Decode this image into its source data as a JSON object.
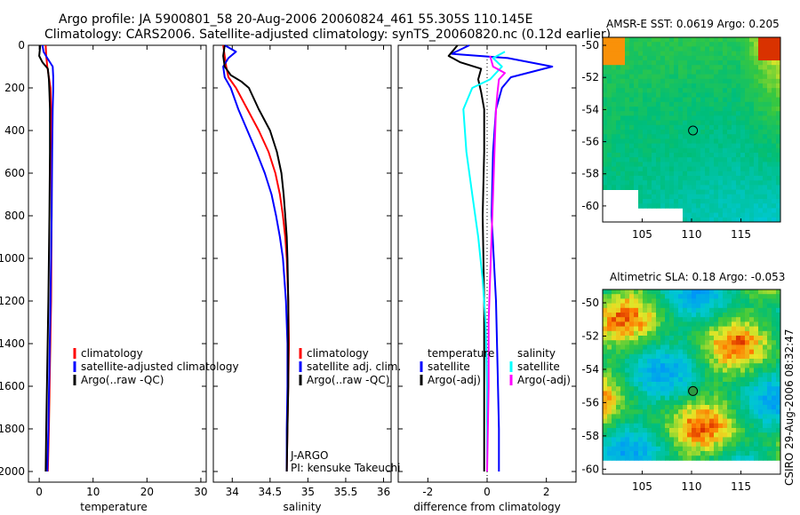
{
  "title": {
    "line1": "Argo profile: JA 5900801_58 20-Aug-2006 20060824_461 55.305S 110.145E",
    "line2": "Climatology: CARS2006. Satellite-adjusted climatology: synTS_20060820.nc (0.12d earlier)"
  },
  "credit": "CSIRO 29-Aug-2006 08:32:47",
  "colors": {
    "climatology": "#ff0000",
    "satellite": "#0000ff",
    "argo": "#000000",
    "salinity_satellite": "#00ffff",
    "salinity_argo": "#ff00ff"
  },
  "chart_data": [
    {
      "type": "line",
      "name": "temperature",
      "xlabel": "temperature",
      "ylabel": "",
      "xlim": [
        -2,
        31
      ],
      "ylim": [
        2050,
        0
      ],
      "xticks": [
        0,
        10,
        20,
        30
      ],
      "yticks": [
        0,
        200,
        400,
        600,
        800,
        1000,
        1200,
        1400,
        1600,
        1800,
        2000
      ],
      "legend": [
        "climatology",
        "satellite-adjusted climatology",
        "Argo(..raw -QC)"
      ],
      "series": [
        {
          "name": "climatology",
          "color": "#ff0000",
          "points": [
            [
              1.2,
              0
            ],
            [
              1.3,
              50
            ],
            [
              1.5,
              100
            ],
            [
              1.8,
              150
            ],
            [
              2.1,
              200
            ],
            [
              2.2,
              300
            ],
            [
              2.3,
              500
            ],
            [
              2.3,
              800
            ],
            [
              2.2,
              1200
            ],
            [
              2.0,
              1500
            ],
            [
              1.8,
              1800
            ],
            [
              1.6,
              2000
            ]
          ]
        },
        {
          "name": "satellite-adjusted climatology",
          "color": "#0000ff",
          "points": [
            [
              0.6,
              0
            ],
            [
              0.8,
              30
            ],
            [
              1.5,
              60
            ],
            [
              2.5,
              100
            ],
            [
              2.6,
              150
            ],
            [
              2.6,
              200
            ],
            [
              2.5,
              300
            ],
            [
              2.4,
              500
            ],
            [
              2.3,
              800
            ],
            [
              2.1,
              1200
            ],
            [
              1.9,
              1500
            ],
            [
              1.7,
              1800
            ],
            [
              1.5,
              2000
            ]
          ]
        },
        {
          "name": "Argo(..raw -QC)",
          "color": "#000000",
          "points": [
            [
              0.2,
              0
            ],
            [
              0.0,
              50
            ],
            [
              0.6,
              80
            ],
            [
              1.6,
              110
            ],
            [
              1.8,
              160
            ],
            [
              1.9,
              220
            ],
            [
              2.0,
              300
            ],
            [
              2.0,
              500
            ],
            [
              1.9,
              800
            ],
            [
              1.7,
              1200
            ],
            [
              1.5,
              1500
            ],
            [
              1.3,
              1800
            ],
            [
              1.2,
              2000
            ]
          ]
        }
      ]
    },
    {
      "type": "line",
      "name": "salinity",
      "xlabel": "salinity",
      "ylabel": "",
      "xlim": [
        33.75,
        36.1
      ],
      "ylim": [
        2050,
        0
      ],
      "xticks": [
        34,
        34.5,
        35,
        35.5,
        36
      ],
      "yticks": [
        0,
        200,
        400,
        600,
        800,
        1000,
        1200,
        1400,
        1600,
        1800,
        2000
      ],
      "legend": [
        "climatology",
        "satellite adj. clim.",
        "Argo(..raw -QC)"
      ],
      "annotations": [
        "J-ARGO",
        "PI: kensuke Takeuchi"
      ],
      "series": [
        {
          "name": "climatology",
          "color": "#ff0000",
          "points": [
            [
              33.88,
              0
            ],
            [
              33.9,
              50
            ],
            [
              33.92,
              100
            ],
            [
              33.95,
              150
            ],
            [
              34.05,
              200
            ],
            [
              34.2,
              300
            ],
            [
              34.35,
              400
            ],
            [
              34.48,
              500
            ],
            [
              34.57,
              600
            ],
            [
              34.63,
              700
            ],
            [
              34.67,
              800
            ],
            [
              34.7,
              900
            ],
            [
              34.72,
              1000
            ],
            [
              34.74,
              1200
            ],
            [
              34.75,
              1400
            ],
            [
              34.74,
              1600
            ],
            [
              34.73,
              1800
            ],
            [
              34.72,
              2000
            ]
          ]
        },
        {
          "name": "satellite adj. clim.",
          "color": "#0000ff",
          "points": [
            [
              33.9,
              0
            ],
            [
              34.05,
              30
            ],
            [
              33.95,
              60
            ],
            [
              33.88,
              100
            ],
            [
              33.9,
              150
            ],
            [
              33.98,
              200
            ],
            [
              34.08,
              300
            ],
            [
              34.2,
              400
            ],
            [
              34.32,
              500
            ],
            [
              34.43,
              600
            ],
            [
              34.52,
              700
            ],
            [
              34.58,
              800
            ],
            [
              34.63,
              900
            ],
            [
              34.67,
              1000
            ],
            [
              34.71,
              1200
            ],
            [
              34.73,
              1400
            ],
            [
              34.73,
              1600
            ],
            [
              34.72,
              1800
            ],
            [
              34.72,
              2000
            ]
          ]
        },
        {
          "name": "Argo(..raw -QC)",
          "color": "#000000",
          "points": [
            [
              33.9,
              0
            ],
            [
              33.88,
              50
            ],
            [
              33.9,
              100
            ],
            [
              33.98,
              140
            ],
            [
              34.12,
              170
            ],
            [
              34.22,
              200
            ],
            [
              34.35,
              300
            ],
            [
              34.5,
              400
            ],
            [
              34.59,
              500
            ],
            [
              34.65,
              600
            ],
            [
              34.68,
              700
            ],
            [
              34.7,
              800
            ],
            [
              34.72,
              900
            ],
            [
              34.73,
              1000
            ],
            [
              34.74,
              1200
            ],
            [
              34.74,
              1400
            ],
            [
              34.74,
              1600
            ],
            [
              34.73,
              1800
            ],
            [
              34.72,
              2000
            ]
          ]
        }
      ]
    },
    {
      "type": "line",
      "name": "difference",
      "xlabel": "difference from climatology",
      "ylabel": "",
      "xlim": [
        -3,
        3
      ],
      "ylim": [
        2050,
        0
      ],
      "xticks": [
        -2,
        0,
        2
      ],
      "yticks": [
        0,
        200,
        400,
        600,
        800,
        1000,
        1200,
        1400,
        1600,
        1800,
        2000
      ],
      "zero_line": true,
      "legend_temperature": {
        "title": "temperature",
        "items": [
          "satellite",
          "Argo(-adj)"
        ]
      },
      "legend_salinity": {
        "title": "salinity",
        "items": [
          "satellite",
          "Argo(-adj)"
        ]
      },
      "series": [
        {
          "name": "temperature satellite",
          "color": "#0000ff",
          "points": [
            [
              -0.6,
              0
            ],
            [
              -1.2,
              40
            ],
            [
              0.7,
              60
            ],
            [
              2.2,
              100
            ],
            [
              0.8,
              150
            ],
            [
              0.5,
              200
            ],
            [
              0.3,
              300
            ],
            [
              0.2,
              500
            ],
            [
              0.15,
              800
            ],
            [
              0.3,
              1200
            ],
            [
              0.35,
              1500
            ],
            [
              0.4,
              1800
            ],
            [
              0.4,
              2000
            ]
          ]
        },
        {
          "name": "temperature Argo(-adj)",
          "color": "#000000",
          "points": [
            [
              -1.0,
              0
            ],
            [
              -1.3,
              50
            ],
            [
              -0.9,
              80
            ],
            [
              -0.2,
              110
            ],
            [
              -0.3,
              160
            ],
            [
              -0.2,
              220
            ],
            [
              -0.1,
              300
            ],
            [
              -0.1,
              500
            ],
            [
              -0.15,
              800
            ],
            [
              -0.1,
              1200
            ],
            [
              -0.1,
              1500
            ],
            [
              -0.1,
              1800
            ],
            [
              -0.1,
              2000
            ]
          ]
        },
        {
          "name": "salinity satellite",
          "color": "#00ffff",
          "points": [
            [
              0.6,
              30
            ],
            [
              0.2,
              60
            ],
            [
              0.5,
              100
            ],
            [
              0.1,
              160
            ],
            [
              -0.5,
              200
            ],
            [
              -0.8,
              300
            ],
            [
              -0.7,
              500
            ],
            [
              -0.5,
              700
            ],
            [
              -0.3,
              900
            ],
            [
              -0.15,
              1100
            ],
            [
              -0.05,
              1300
            ],
            [
              0.0,
              1600
            ],
            [
              0.0,
              2000
            ]
          ]
        },
        {
          "name": "salinity Argo(-adj)",
          "color": "#ff00ff",
          "points": [
            [
              0.1,
              50
            ],
            [
              0.2,
              100
            ],
            [
              0.6,
              130
            ],
            [
              0.4,
              160
            ],
            [
              0.35,
              220
            ],
            [
              0.3,
              300
            ],
            [
              0.25,
              500
            ],
            [
              0.2,
              700
            ],
            [
              0.15,
              900
            ],
            [
              0.1,
              1100
            ],
            [
              0.05,
              1300
            ],
            [
              0.05,
              1600
            ],
            [
              0.0,
              2000
            ]
          ]
        }
      ]
    },
    {
      "type": "heatmap",
      "name": "sst_map",
      "title": "AMSR-E SST: 0.0619 Argo: 0.205",
      "xticks": [
        105,
        110,
        115
      ],
      "yticks": [
        -50,
        -52,
        -54,
        -56,
        -58,
        -60
      ],
      "xlim": [
        101,
        119
      ],
      "ylim": [
        -61,
        -49.5
      ],
      "marker": {
        "lon": 110.145,
        "lat": -55.305
      }
    },
    {
      "type": "heatmap",
      "name": "sla_map",
      "title": "Altimetric SLA: 0.18 Argo: -0.053",
      "xticks": [
        105,
        110,
        115
      ],
      "yticks": [
        -50,
        -52,
        -54,
        -56,
        -58,
        -60
      ],
      "xlim": [
        101,
        119
      ],
      "ylim": [
        -60.3,
        -49.2
      ],
      "marker": {
        "lon": 110.145,
        "lat": -55.305
      }
    }
  ]
}
